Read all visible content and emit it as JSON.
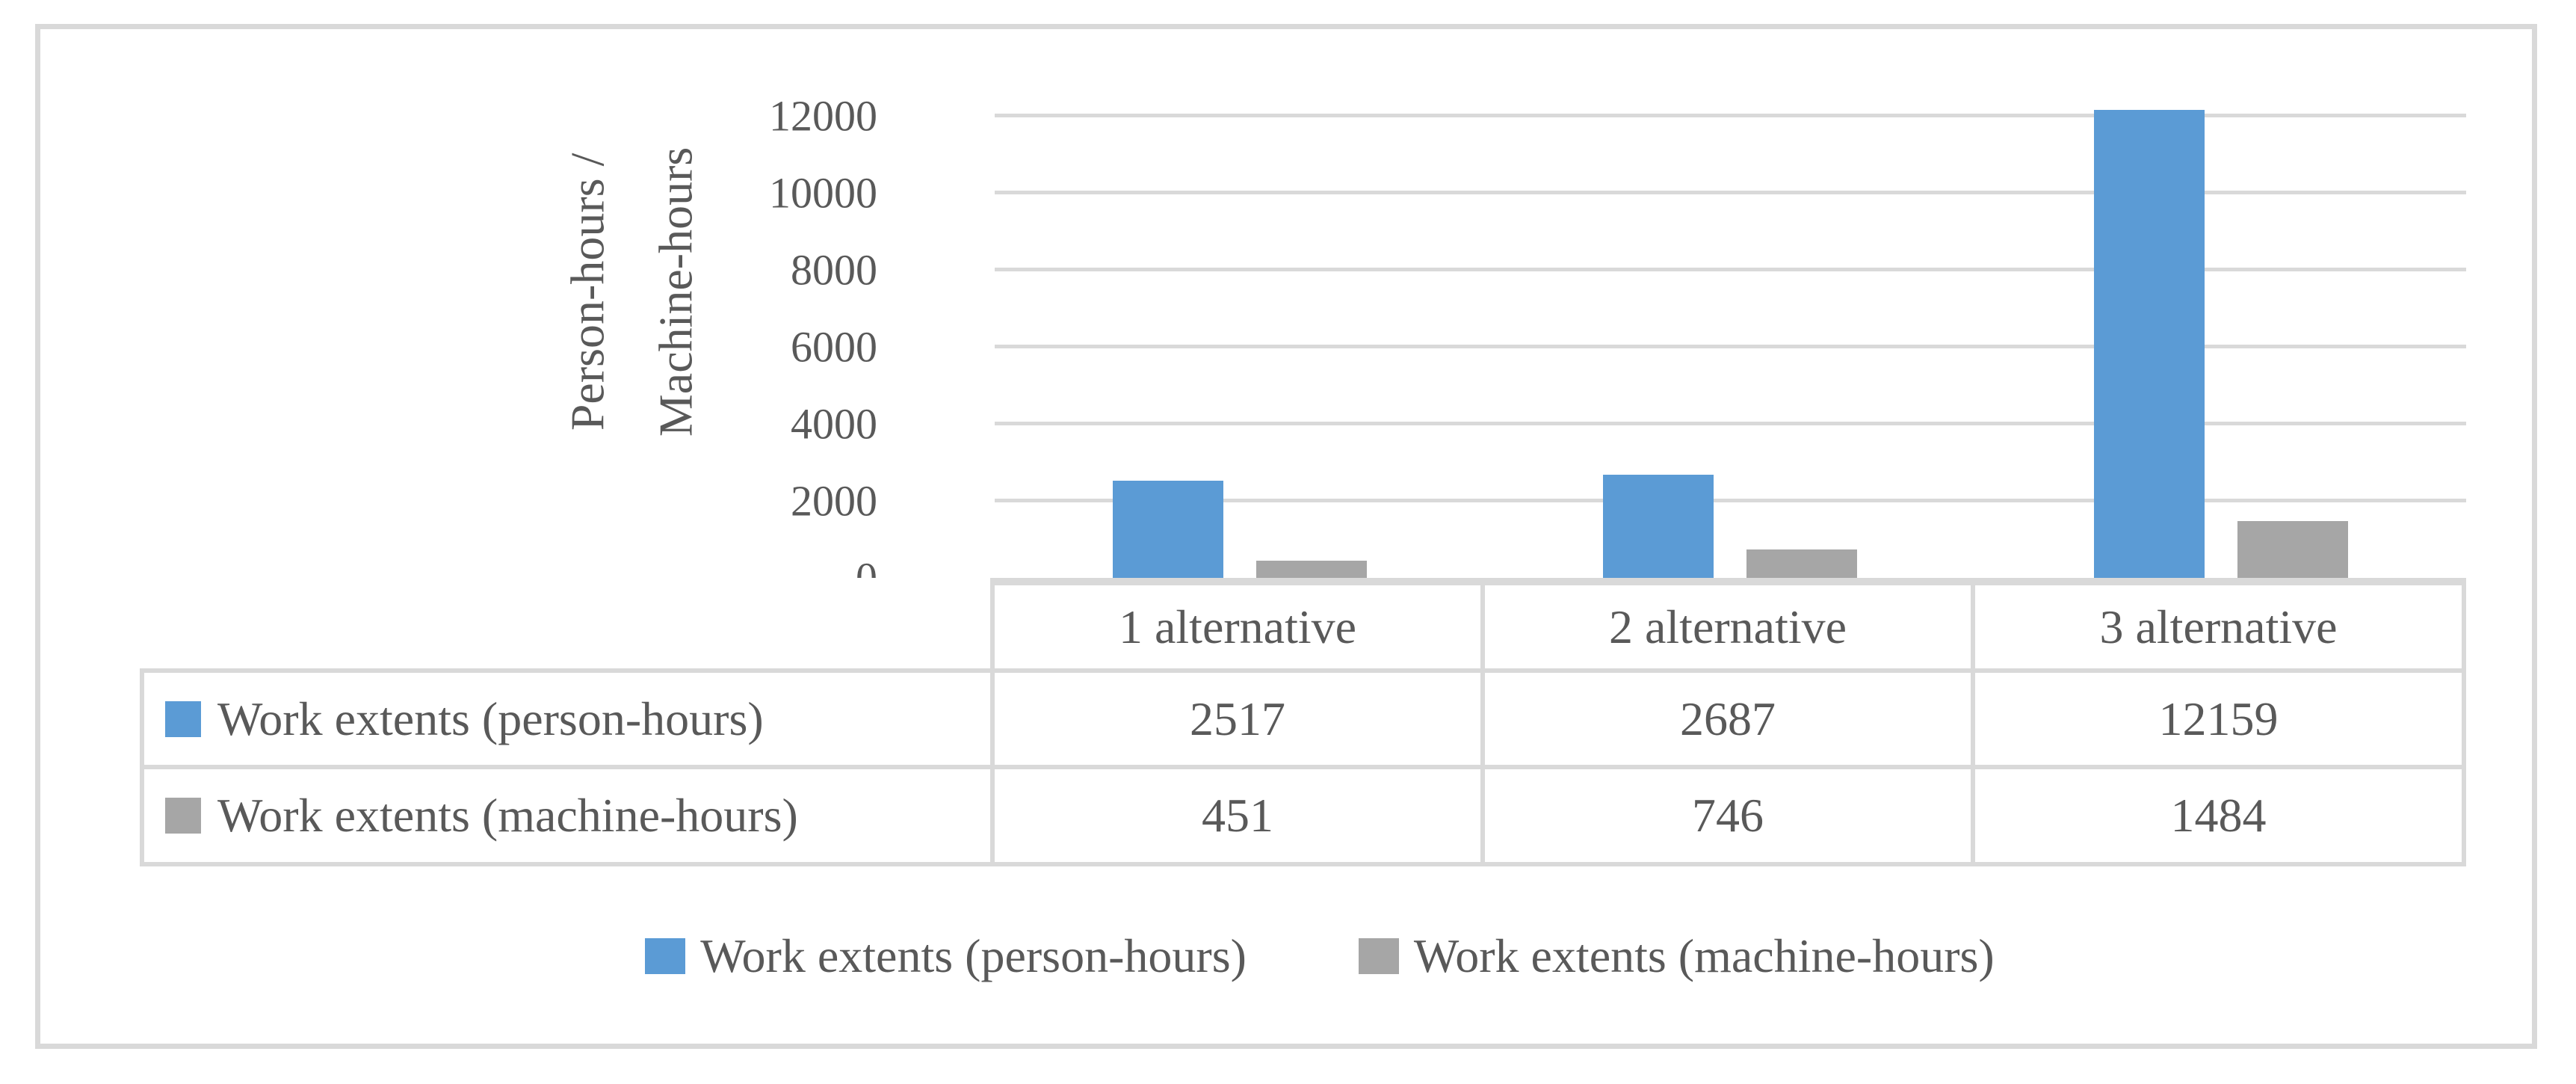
{
  "figure": {
    "frame_border_color": "#D9D9D9",
    "background_color": "#FFFFFF",
    "text_color": "#595959",
    "gridline_color": "#D9D9D9"
  },
  "chart_data": {
    "type": "bar",
    "title": "",
    "categories": [
      "1 alternative",
      "2 alternative",
      "3 alternative"
    ],
    "series": [
      {
        "name": "Work extents (person-hours)",
        "color": "#5B9BD5",
        "values": [
          2517,
          2687,
          12159
        ]
      },
      {
        "name": "Work extents (machine-hours)",
        "color": "#A6A6A6",
        "values": [
          451,
          746,
          1484
        ]
      }
    ],
    "xlabel": "",
    "ylabel": "Person-hours /\nMachine-hours",
    "ytick_labels": [
      "0",
      "2000",
      "4000",
      "6000",
      "8000",
      "10000",
      "12000"
    ],
    "ylim": [
      0,
      12000
    ],
    "grid": "horizontal",
    "legend_position": "bottom",
    "data_table_shown": true
  },
  "legend": {
    "items": [
      {
        "label": "Work extents (person-hours)",
        "color": "#5B9BD5"
      },
      {
        "label": "Work extents (machine-hours)",
        "color": "#A6A6A6"
      }
    ]
  }
}
